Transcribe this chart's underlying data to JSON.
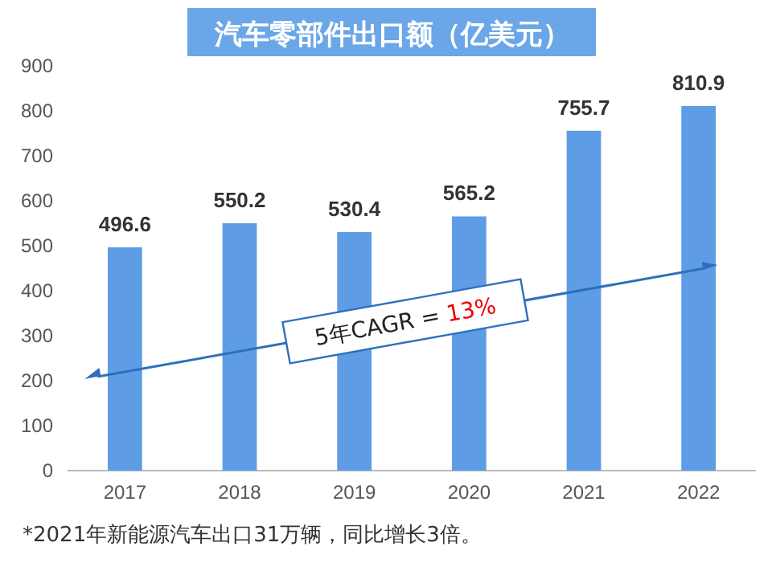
{
  "chart_data": {
    "type": "bar",
    "title": "汽车零部件出口额（亿美元）",
    "categories": [
      "2017",
      "2018",
      "2019",
      "2020",
      "2021",
      "2022"
    ],
    "values": [
      496.6,
      550.2,
      530.4,
      565.2,
      755.7,
      810.9
    ],
    "color": "#5e9de6",
    "data_labels": true,
    "ylim": [
      0,
      900
    ],
    "yticks": [
      0,
      100,
      200,
      300,
      400,
      500,
      600,
      700,
      800,
      900
    ],
    "grid": false,
    "annotations": [
      "5年CAGR = 13%",
      "*2021年新能源汽车出口31万辆，同比增长3倍。"
    ]
  }
}
